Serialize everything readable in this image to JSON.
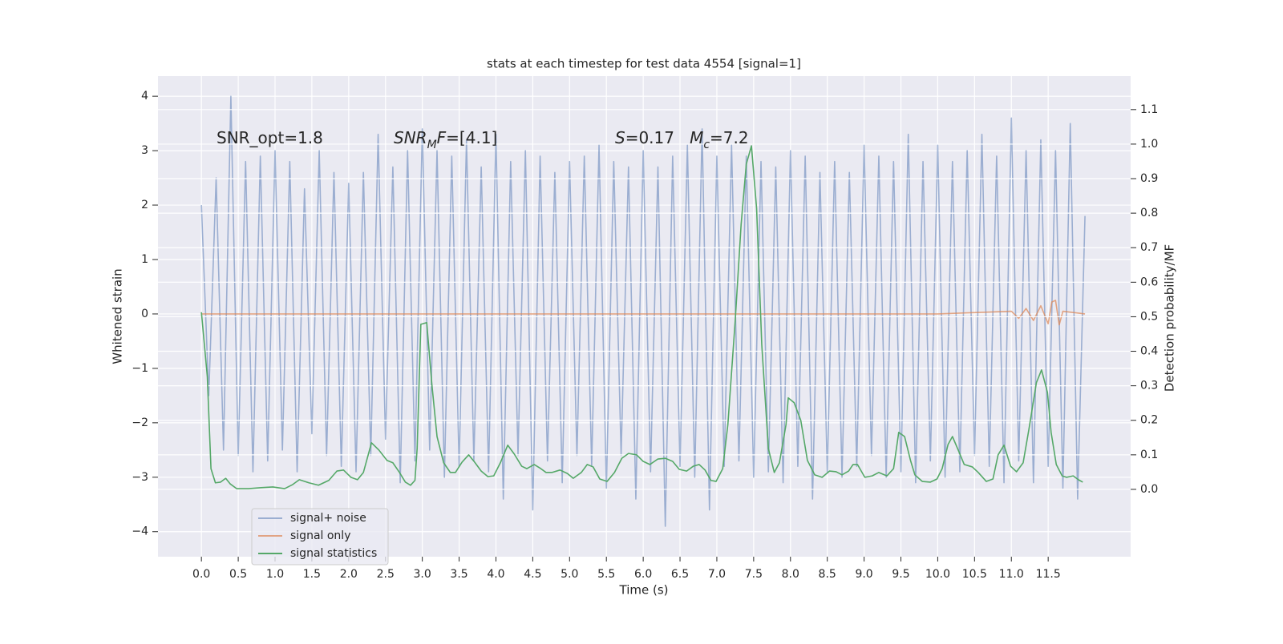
{
  "chart_data": {
    "type": "line",
    "title": "stats at each timestep for test data 4554 [signal=1]",
    "xlabel": "Time (s)",
    "ylabel": "Whitened strain",
    "y2label": "Detection probability/MF",
    "grid": true,
    "legend_loc": "lower left",
    "xlim": [
      -0.59,
      12.62
    ],
    "ylim": [
      -4.46,
      4.37
    ],
    "y2lim": [
      -0.195,
      1.197
    ],
    "xticks": [
      {
        "value": 0,
        "label": "0.0"
      },
      0.5,
      {
        "value": 1,
        "label": "1.0"
      },
      1.5,
      {
        "value": 2,
        "label": "2.0"
      },
      2.5,
      {
        "value": 3,
        "label": "3.0"
      },
      3.5,
      {
        "value": 4,
        "label": "4.0"
      },
      4.5,
      {
        "value": 5,
        "label": "5.0"
      },
      5.5,
      {
        "value": 6,
        "label": "6.0"
      },
      6.5,
      {
        "value": 7,
        "label": "7.0"
      },
      7.5,
      {
        "value": 8,
        "label": "8.0"
      },
      8.5,
      {
        "value": 9,
        "label": "9.0"
      },
      9.5,
      {
        "value": 10,
        "label": "10.0"
      },
      10.5,
      {
        "value": 11,
        "label": "11.0"
      },
      11.5
    ],
    "yticks": [
      {
        "value": -4,
        "label": "−4"
      },
      {
        "value": -3,
        "label": "−3"
      },
      {
        "value": -2,
        "label": "−2"
      },
      {
        "value": -1,
        "label": "−1"
      },
      0,
      1,
      2,
      3,
      4
    ],
    "y2ticks": [
      {
        "value": 0,
        "label": "0.0"
      },
      0.1,
      0.2,
      0.3,
      0.4,
      0.5,
      0.6,
      0.7,
      0.8,
      0.9,
      {
        "value": 1,
        "label": "1.0"
      },
      1.1
    ],
    "annotations": [
      [
        {
          "t": "SNR_opt=1.8"
        }
      ],
      [
        {
          "t": "SNR",
          "italic": true
        },
        {
          "t": "M",
          "italic": true,
          "sub": true
        },
        {
          "t": "F",
          "italic": true
        },
        {
          "t": "=[4.1]"
        }
      ],
      [
        {
          "t": "S",
          "italic": true
        },
        {
          "t": "=0.17   "
        },
        {
          "t": "M",
          "italic": true
        },
        {
          "t": "c",
          "italic": true,
          "sub": true
        },
        {
          "t": "=7.2"
        }
      ]
    ],
    "series": [
      {
        "name": "signal+ noise",
        "color": "#4c72b0",
        "opacity": 0.5,
        "x": [
          0,
          0.1,
          0.2,
          0.3,
          0.4,
          0.5,
          0.6,
          0.7,
          0.8,
          0.9,
          1,
          1.1,
          1.2,
          1.3,
          1.4,
          1.5,
          1.6,
          1.7,
          1.8,
          1.9,
          2,
          2.1,
          2.2,
          2.3,
          2.4,
          2.5,
          2.6,
          2.7,
          2.8,
          2.9,
          3,
          3.1,
          3.2,
          3.3,
          3.4,
          3.5,
          3.6,
          3.7,
          3.8,
          3.9,
          4,
          4.1,
          4.2,
          4.3,
          4.4,
          4.5,
          4.6,
          4.7,
          4.8,
          4.9,
          5,
          5.1,
          5.2,
          5.3,
          5.4,
          5.5,
          5.6,
          5.7,
          5.8,
          5.9,
          6,
          6.1,
          6.2,
          6.3,
          6.4,
          6.5,
          6.6,
          6.7,
          6.8,
          6.9,
          7,
          7.1,
          7.2,
          7.3,
          7.4,
          7.5,
          7.6,
          7.7,
          7.8,
          7.9,
          8,
          8.1,
          8.2,
          8.3,
          8.4,
          8.5,
          8.6,
          8.7,
          8.8,
          8.9,
          9,
          9.1,
          9.2,
          9.3,
          9.4,
          9.5,
          9.6,
          9.7,
          9.8,
          9.9,
          10,
          10.1,
          10.2,
          10.3,
          10.4,
          10.5,
          10.6,
          10.7,
          10.8,
          10.9,
          11,
          11.1,
          11.2,
          11.3,
          11.4,
          11.5,
          11.6,
          11.7,
          11.8,
          11.9,
          12
        ],
        "values": [
          2.0,
          -1.5,
          2.5,
          -2.5,
          4.0,
          -2.6,
          2.8,
          -2.9,
          2.9,
          -2.7,
          3.0,
          -2.5,
          2.8,
          -2.9,
          2.3,
          -2.2,
          3.0,
          -2.6,
          2.6,
          -2.8,
          2.4,
          -2.9,
          2.6,
          -2.6,
          3.3,
          -2.3,
          2.7,
          -3.1,
          3.0,
          -2.7,
          3.4,
          -2.5,
          3.0,
          -3.0,
          2.9,
          -2.8,
          3.2,
          -2.7,
          2.7,
          -2.9,
          3.3,
          -3.4,
          2.8,
          -2.6,
          3.0,
          -3.6,
          2.9,
          -2.7,
          2.6,
          -3.1,
          2.8,
          -2.6,
          2.9,
          -2.8,
          3.1,
          -3.2,
          2.8,
          -2.6,
          2.7,
          -3.4,
          3.0,
          -2.9,
          2.7,
          -3.9,
          2.9,
          -2.8,
          3.1,
          -3.0,
          3.4,
          -3.6,
          2.9,
          -2.8,
          3.1,
          -2.7,
          2.9,
          -3.0,
          2.8,
          -2.9,
          2.7,
          -3.1,
          3.0,
          -2.8,
          2.9,
          -3.4,
          2.6,
          -2.9,
          2.8,
          -3.0,
          2.6,
          -2.8,
          3.1,
          -2.6,
          2.9,
          -3.0,
          2.8,
          -2.9,
          3.3,
          -3.1,
          2.8,
          -2.7,
          3.1,
          -3.0,
          2.8,
          -2.9,
          3.0,
          -2.6,
          3.3,
          -2.8,
          2.9,
          -3.1,
          3.6,
          -2.7,
          3.0,
          -3.1,
          3.2,
          -2.8,
          3.0,
          -3.2,
          3.5,
          -3.4,
          1.8
        ]
      },
      {
        "name": "signal only",
        "color": "#dd8452",
        "opacity": 0.7,
        "x": [
          0,
          1,
          2,
          3,
          4,
          5,
          6,
          7,
          8,
          9,
          10,
          11,
          11.1,
          11.2,
          11.3,
          11.4,
          11.5,
          11.55,
          11.6,
          11.65,
          11.7,
          12
        ],
        "values": [
          0,
          0,
          0,
          0,
          0,
          0,
          0,
          0,
          0,
          0,
          0,
          0.05,
          -0.08,
          0.1,
          -0.12,
          0.15,
          -0.18,
          0.22,
          0.25,
          -0.2,
          0.05,
          0
        ]
      },
      {
        "name": "signal statistics",
        "color": "#55a868",
        "opacity": 1,
        "axis": "y2",
        "x": [
          0,
          0.08,
          0.13,
          0.19,
          0.26,
          0.33,
          0.39,
          0.48,
          0.64,
          0.81,
          0.97,
          1.13,
          1.24,
          1.33,
          1.46,
          1.59,
          1.73,
          1.84,
          1.93,
          2.03,
          2.12,
          2.2,
          2.31,
          2.41,
          2.52,
          2.6,
          2.69,
          2.77,
          2.84,
          2.9,
          2.93,
          2.98,
          3.06,
          3.13,
          3.2,
          3.29,
          3.38,
          3.45,
          3.54,
          3.63,
          3.71,
          3.8,
          3.89,
          3.97,
          4.06,
          4.16,
          4.25,
          4.35,
          4.42,
          4.52,
          4.61,
          4.68,
          4.76,
          4.87,
          4.97,
          5.05,
          5.16,
          5.24,
          5.32,
          5.41,
          5.51,
          5.61,
          5.71,
          5.8,
          5.91,
          6.0,
          6.09,
          6.2,
          6.3,
          6.4,
          6.49,
          6.59,
          6.68,
          6.76,
          6.84,
          6.92,
          6.99,
          7.08,
          7.15,
          7.25,
          7.33,
          7.4,
          7.47,
          7.54,
          7.61,
          7.7,
          7.78,
          7.85,
          7.94,
          7.97,
          8.05,
          8.14,
          8.23,
          8.33,
          8.43,
          8.53,
          8.62,
          8.7,
          8.79,
          8.85,
          8.91,
          9.01,
          9.11,
          9.2,
          9.31,
          9.4,
          9.47,
          9.55,
          9.63,
          9.69,
          9.79,
          9.9,
          9.99,
          10.06,
          10.14,
          10.2,
          10.27,
          10.36,
          10.47,
          10.55,
          10.66,
          10.75,
          10.82,
          10.9,
          10.99,
          11.07,
          11.16,
          11.24,
          11.34,
          11.41,
          11.49,
          11.54,
          11.61,
          11.69,
          11.75,
          11.84,
          11.91,
          11.97
        ],
        "values": [
          0.513,
          0.327,
          0.06,
          0.019,
          0.021,
          0.032,
          0.016,
          0.002,
          0.002,
          0.005,
          0.007,
          0.002,
          0.014,
          0.028,
          0.019,
          0.012,
          0.026,
          0.053,
          0.056,
          0.035,
          0.028,
          0.049,
          0.135,
          0.114,
          0.084,
          0.077,
          0.049,
          0.021,
          0.012,
          0.026,
          0.118,
          0.478,
          0.483,
          0.304,
          0.153,
          0.077,
          0.049,
          0.049,
          0.079,
          0.1,
          0.079,
          0.053,
          0.037,
          0.039,
          0.077,
          0.128,
          0.102,
          0.067,
          0.06,
          0.072,
          0.06,
          0.049,
          0.049,
          0.056,
          0.046,
          0.032,
          0.049,
          0.072,
          0.065,
          0.03,
          0.023,
          0.049,
          0.09,
          0.104,
          0.1,
          0.081,
          0.072,
          0.088,
          0.09,
          0.081,
          0.058,
          0.053,
          0.067,
          0.072,
          0.056,
          0.026,
          0.023,
          0.06,
          0.188,
          0.49,
          0.768,
          0.942,
          0.995,
          0.814,
          0.42,
          0.118,
          0.049,
          0.077,
          0.188,
          0.265,
          0.251,
          0.2,
          0.084,
          0.042,
          0.035,
          0.053,
          0.051,
          0.042,
          0.053,
          0.072,
          0.072,
          0.035,
          0.039,
          0.049,
          0.039,
          0.06,
          0.165,
          0.153,
          0.084,
          0.042,
          0.023,
          0.021,
          0.03,
          0.06,
          0.13,
          0.153,
          0.118,
          0.072,
          0.065,
          0.049,
          0.023,
          0.03,
          0.1,
          0.128,
          0.067,
          0.051,
          0.077,
          0.176,
          0.309,
          0.346,
          0.281,
          0.165,
          0.072,
          0.039,
          0.035,
          0.039,
          0.028,
          0.021
        ]
      }
    ]
  }
}
